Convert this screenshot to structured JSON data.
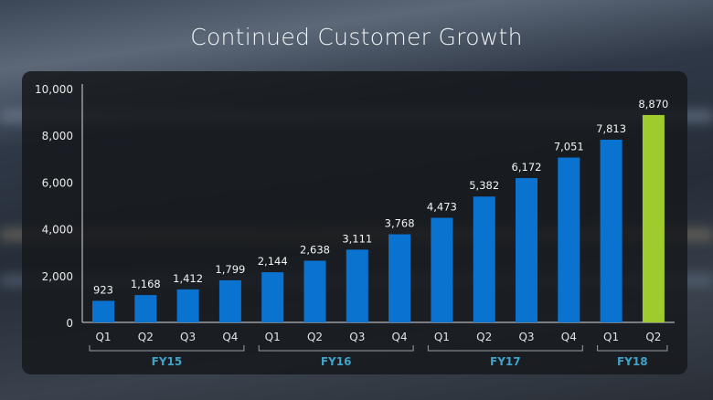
{
  "chart_data": {
    "type": "bar",
    "title": "Continued Customer Growth",
    "categories": [
      "Q1",
      "Q2",
      "Q3",
      "Q4",
      "Q1",
      "Q2",
      "Q3",
      "Q4",
      "Q1",
      "Q2",
      "Q3",
      "Q4",
      "Q1",
      "Q2"
    ],
    "values": [
      923,
      1168,
      1412,
      1799,
      2144,
      2638,
      3111,
      3768,
      4473,
      5382,
      6172,
      7051,
      7813,
      8870
    ],
    "value_labels": [
      "923",
      "1,168",
      "1,412",
      "1,799",
      "2,144",
      "2,638",
      "3,111",
      "3,768",
      "4,473",
      "5,382",
      "6,172",
      "7,051",
      "7,813",
      "8,870"
    ],
    "groups": [
      {
        "label": "FY15",
        "start": 0,
        "end": 3
      },
      {
        "label": "FY16",
        "start": 4,
        "end": 7
      },
      {
        "label": "FY17",
        "start": 8,
        "end": 11
      },
      {
        "label": "FY18",
        "start": 12,
        "end": 13
      }
    ],
    "highlight_index": 13,
    "ylim": [
      0,
      10000
    ],
    "yticks": [
      0,
      2000,
      4000,
      6000,
      8000,
      10000
    ],
    "ytick_labels": [
      "0",
      "2,000",
      "4,000",
      "6,000",
      "8,000",
      "10,000"
    ],
    "xlabel": "",
    "ylabel": "",
    "grid": false,
    "colors": {
      "bar": "#0a73d0",
      "highlight": "#9fcb2e",
      "group_label": "#3fa3c8"
    }
  }
}
